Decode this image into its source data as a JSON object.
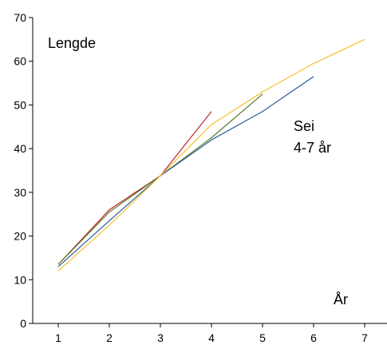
{
  "chart_data": {
    "type": "line",
    "title": "",
    "xlabel": "År",
    "ylabel": "Lengde",
    "annotation_lines": [
      "Sei",
      "4-7 år"
    ],
    "xlim": [
      0.5,
      7.5
    ],
    "ylim": [
      0,
      70
    ],
    "xticks": [
      1,
      2,
      3,
      4,
      5,
      6,
      7
    ],
    "yticks": [
      0,
      10,
      20,
      30,
      40,
      50,
      60,
      70
    ],
    "grid": false,
    "series": [
      {
        "color": "#c0202a",
        "x": [
          1,
          2,
          3,
          4
        ],
        "y": [
          13.5,
          26,
          33.8,
          48.5
        ]
      },
      {
        "color": "#5a7d2c",
        "x": [
          1,
          2,
          3,
          4,
          5
        ],
        "y": [
          13.5,
          25.5,
          33.8,
          42.5,
          52.5
        ]
      },
      {
        "color": "#2b5b9c",
        "x": [
          1,
          2,
          3,
          4,
          5,
          6
        ],
        "y": [
          13,
          23.5,
          33.8,
          42,
          48.5,
          56.5
        ]
      },
      {
        "color": "#f2c12e",
        "x": [
          1,
          2,
          3,
          4,
          5,
          6,
          7
        ],
        "y": [
          12,
          22.5,
          33.8,
          45.5,
          53,
          59.5,
          65
        ]
      }
    ]
  }
}
